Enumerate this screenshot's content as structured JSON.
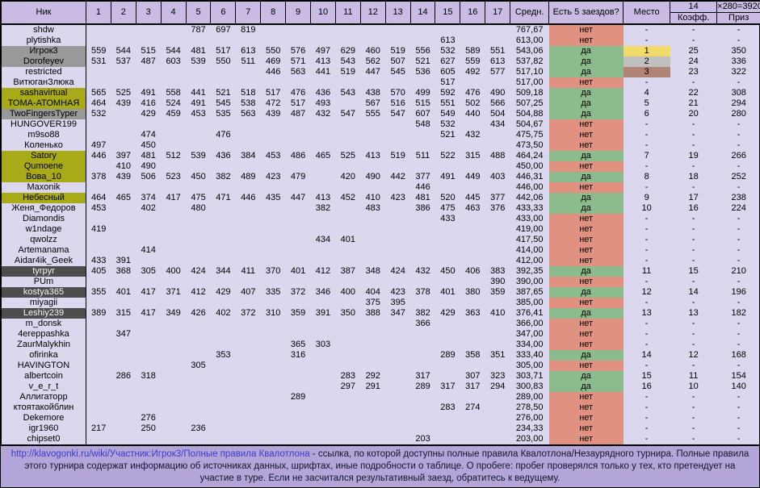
{
  "colors": {
    "header_bg": "#c9bbe3",
    "row_bg": "#dbd7ef",
    "nick_gray": "#999999",
    "nick_olive": "#a8aa18",
    "nick_dark": "#4d4d4d",
    "yes_green": "#8cbb8e",
    "no_salmon": "#e09180",
    "place_gold": "#f2db69",
    "place_silver": "#c0c0c0",
    "place_bronze": "#b08374",
    "footer_bg": "#b4a5d9",
    "link_blue": "#3a3ccd"
  },
  "header": {
    "nick": "Ник",
    "race_numbers": [
      "1",
      "2",
      "3",
      "4",
      "5",
      "6",
      "7",
      "8",
      "9",
      "10",
      "11",
      "12",
      "13",
      "14",
      "15",
      "16",
      "17"
    ],
    "avg": "Средн.",
    "five_races": "Есть 5 заездов?",
    "place": "Место",
    "coeff_group": "14",
    "prize_group": "×280=3920",
    "coeff": "Коэфф.",
    "prize": "Приз"
  },
  "rows": [
    {
      "nick": "shdw",
      "style": "plain",
      "scores": [
        "",
        "",
        "",
        "",
        "787",
        "697",
        "819",
        "",
        "",
        "",
        "",
        "",
        "",
        "",
        "",
        "",
        ""
      ],
      "avg": "767,67",
      "five": "нет",
      "place": "-",
      "coeff": "-",
      "prize": "-"
    },
    {
      "nick": "plytishka",
      "style": "plain",
      "scores": [
        "",
        "",
        "",
        "",
        "",
        "",
        "",
        "",
        "",
        "",
        "",
        "",
        "",
        "",
        "613",
        "",
        ""
      ],
      "avg": "613,00",
      "five": "нет",
      "place": "-",
      "coeff": "-",
      "prize": "-"
    },
    {
      "nick": "Игрок3",
      "style": "gray",
      "scores": [
        "559",
        "544",
        "515",
        "544",
        "481",
        "517",
        "613",
        "550",
        "576",
        "497",
        "629",
        "460",
        "519",
        "556",
        "532",
        "589",
        "551"
      ],
      "avg": "543,06",
      "five": "да",
      "place": "1",
      "medal": "gold",
      "coeff": "25",
      "prize": "350"
    },
    {
      "nick": "Dorofeyev",
      "style": "gray",
      "scores": [
        "531",
        "537",
        "487",
        "603",
        "539",
        "550",
        "511",
        "469",
        "571",
        "413",
        "543",
        "562",
        "507",
        "521",
        "627",
        "559",
        "613"
      ],
      "avg": "537,82",
      "five": "да",
      "place": "2",
      "medal": "silver",
      "coeff": "24",
      "prize": "336"
    },
    {
      "nick": "restricted",
      "style": "plain",
      "scores": [
        "",
        "",
        "",
        "",
        "",
        "",
        "",
        "446",
        "563",
        "441",
        "519",
        "447",
        "545",
        "536",
        "605",
        "492",
        "577"
      ],
      "avg": "517,10",
      "five": "да",
      "place": "3",
      "medal": "bronze",
      "coeff": "23",
      "prize": "322"
    },
    {
      "nick": "ВитюганЗлюка",
      "style": "plain",
      "scores": [
        "",
        "",
        "",
        "",
        "",
        "",
        "",
        "",
        "",
        "",
        "",
        "",
        "",
        "",
        "517",
        "",
        ""
      ],
      "avg": "517,00",
      "five": "нет",
      "place": "-",
      "coeff": "-",
      "prize": "-"
    },
    {
      "nick": "sashavirtual",
      "style": "olive",
      "scores": [
        "565",
        "525",
        "491",
        "558",
        "441",
        "521",
        "518",
        "517",
        "476",
        "436",
        "543",
        "438",
        "570",
        "499",
        "592",
        "476",
        "490"
      ],
      "avg": "509,18",
      "five": "да",
      "place": "4",
      "coeff": "22",
      "prize": "308"
    },
    {
      "nick": "ТОМА-АТОМНАЯ",
      "style": "olive",
      "scores": [
        "464",
        "439",
        "416",
        "524",
        "491",
        "545",
        "538",
        "472",
        "517",
        "493",
        "",
        "567",
        "516",
        "515",
        "551",
        "502",
        "566"
      ],
      "avg": "507,25",
      "five": "да",
      "place": "5",
      "coeff": "21",
      "prize": "294"
    },
    {
      "nick": "TwoFingersTyper",
      "style": "gray",
      "scores": [
        "532",
        "",
        "429",
        "459",
        "453",
        "535",
        "563",
        "439",
        "487",
        "432",
        "547",
        "555",
        "547",
        "607",
        "549",
        "440",
        "504"
      ],
      "avg": "504,88",
      "five": "да",
      "place": "6",
      "coeff": "20",
      "prize": "280"
    },
    {
      "nick": "HUNGOVER199",
      "style": "plain",
      "scores": [
        "",
        "",
        "",
        "",
        "",
        "",
        "",
        "",
        "",
        "",
        "",
        "",
        "",
        "548",
        "532",
        "",
        "434"
      ],
      "avg": "504,67",
      "five": "нет",
      "place": "-",
      "coeff": "-",
      "prize": "-"
    },
    {
      "nick": "m9so88",
      "style": "plain",
      "scores": [
        "",
        "",
        "474",
        "",
        "",
        "476",
        "",
        "",
        "",
        "",
        "",
        "",
        "",
        "",
        "521",
        "432",
        ""
      ],
      "avg": "475,75",
      "five": "нет",
      "place": "-",
      "coeff": "-",
      "prize": "-"
    },
    {
      "nick": "Коленько",
      "style": "plain",
      "scores": [
        "497",
        "",
        "450",
        "",
        "",
        "",
        "",
        "",
        "",
        "",
        "",
        "",
        "",
        "",
        "",
        "",
        ""
      ],
      "avg": "473,50",
      "five": "нет",
      "place": "-",
      "coeff": "-",
      "prize": "-"
    },
    {
      "nick": "Satory",
      "style": "olive",
      "scores": [
        "446",
        "397",
        "481",
        "512",
        "539",
        "436",
        "384",
        "453",
        "486",
        "465",
        "525",
        "413",
        "519",
        "511",
        "522",
        "315",
        "488"
      ],
      "avg": "464,24",
      "five": "да",
      "place": "7",
      "coeff": "19",
      "prize": "266"
    },
    {
      "nick": "Qumoene",
      "style": "olive",
      "scores": [
        "",
        "410",
        "490",
        "",
        "",
        "",
        "",
        "",
        "",
        "",
        "",
        "",
        "",
        "",
        "",
        "",
        ""
      ],
      "avg": "450,00",
      "five": "нет",
      "place": "-",
      "coeff": "-",
      "prize": "-"
    },
    {
      "nick": "Вова_10",
      "style": "olive",
      "scores": [
        "378",
        "439",
        "506",
        "523",
        "450",
        "382",
        "489",
        "423",
        "479",
        "",
        "420",
        "490",
        "442",
        "377",
        "491",
        "449",
        "403"
      ],
      "avg": "446,31",
      "five": "да",
      "place": "8",
      "coeff": "18",
      "prize": "252"
    },
    {
      "nick": "Maxonik",
      "style": "plain",
      "scores": [
        "",
        "",
        "",
        "",
        "",
        "",
        "",
        "",
        "",
        "",
        "",
        "",
        "",
        "446",
        "",
        "",
        ""
      ],
      "avg": "446,00",
      "five": "нет",
      "place": "-",
      "coeff": "-",
      "prize": "-"
    },
    {
      "nick": "Небесный",
      "style": "olive",
      "scores": [
        "464",
        "465",
        "374",
        "417",
        "475",
        "471",
        "446",
        "435",
        "447",
        "413",
        "452",
        "410",
        "423",
        "481",
        "520",
        "445",
        "377"
      ],
      "avg": "442,06",
      "five": "да",
      "place": "9",
      "coeff": "17",
      "prize": "238"
    },
    {
      "nick": "Женя_Федоров",
      "style": "plain",
      "scores": [
        "453",
        "",
        "402",
        "",
        "480",
        "",
        "",
        "",
        "",
        "382",
        "",
        "483",
        "",
        "386",
        "475",
        "463",
        "376"
      ],
      "avg": "433,33",
      "five": "да",
      "place": "10",
      "coeff": "16",
      "prize": "224"
    },
    {
      "nick": "Diamondis",
      "style": "plain",
      "scores": [
        "",
        "",
        "",
        "",
        "",
        "",
        "",
        "",
        "",
        "",
        "",
        "",
        "",
        "",
        "433",
        "",
        ""
      ],
      "avg": "433,00",
      "five": "нет",
      "place": "-",
      "coeff": "-",
      "prize": "-"
    },
    {
      "nick": "w1ndage",
      "style": "plain",
      "scores": [
        "419",
        "",
        "",
        "",
        "",
        "",
        "",
        "",
        "",
        "",
        "",
        "",
        "",
        "",
        "",
        "",
        ""
      ],
      "avg": "419,00",
      "five": "нет",
      "place": "-",
      "coeff": "-",
      "prize": "-"
    },
    {
      "nick": "qwolzz",
      "style": "plain",
      "scores": [
        "",
        "",
        "",
        "",
        "",
        "",
        "",
        "",
        "",
        "434",
        "401",
        "",
        "",
        "",
        "",
        "",
        ""
      ],
      "avg": "417,50",
      "five": "нет",
      "place": "-",
      "coeff": "-",
      "prize": "-"
    },
    {
      "nick": "Artemanama",
      "style": "plain",
      "scores": [
        "",
        "",
        "414",
        "",
        "",
        "",
        "",
        "",
        "",
        "",
        "",
        "",
        "",
        "",
        "",
        "",
        ""
      ],
      "avg": "414,00",
      "five": "нет",
      "place": "-",
      "coeff": "-",
      "prize": "-"
    },
    {
      "nick": "Aidar4ik_Geek",
      "style": "plain",
      "scores": [
        "433",
        "391",
        "",
        "",
        "",
        "",
        "",
        "",
        "",
        "",
        "",
        "",
        "",
        "",
        "",
        "",
        ""
      ],
      "avg": "412,00",
      "five": "нет",
      "place": "-",
      "coeff": "-",
      "prize": "-"
    },
    {
      "nick": "tyrpyr",
      "style": "dark",
      "scores": [
        "405",
        "368",
        "305",
        "400",
        "424",
        "344",
        "411",
        "370",
        "401",
        "412",
        "387",
        "348",
        "424",
        "432",
        "450",
        "406",
        "383"
      ],
      "avg": "392,35",
      "five": "да",
      "place": "11",
      "coeff": "15",
      "prize": "210"
    },
    {
      "nick": "PUm",
      "style": "plain",
      "scores": [
        "",
        "",
        "",
        "",
        "",
        "",
        "",
        "",
        "",
        "",
        "",
        "",
        "",
        "",
        "",
        "",
        "390"
      ],
      "avg": "390,00",
      "five": "нет",
      "place": "-",
      "coeff": "-",
      "prize": "-"
    },
    {
      "nick": "kostya365",
      "style": "dark",
      "scores": [
        "355",
        "401",
        "417",
        "371",
        "412",
        "429",
        "407",
        "335",
        "372",
        "346",
        "400",
        "404",
        "423",
        "378",
        "401",
        "380",
        "359"
      ],
      "avg": "387,65",
      "five": "да",
      "place": "12",
      "coeff": "14",
      "prize": "196"
    },
    {
      "nick": "miyagii",
      "style": "plain",
      "scores": [
        "",
        "",
        "",
        "",
        "",
        "",
        "",
        "",
        "",
        "",
        "",
        "375",
        "395",
        "",
        "",
        "",
        ""
      ],
      "avg": "385,00",
      "five": "нет",
      "place": "-",
      "coeff": "-",
      "prize": "-"
    },
    {
      "nick": "Leshiy239",
      "style": "dark",
      "scores": [
        "389",
        "315",
        "417",
        "349",
        "426",
        "402",
        "372",
        "310",
        "359",
        "391",
        "350",
        "388",
        "347",
        "382",
        "429",
        "363",
        "410"
      ],
      "avg": "376,41",
      "five": "да",
      "place": "13",
      "coeff": "13",
      "prize": "182"
    },
    {
      "nick": "m_donsk",
      "style": "plain",
      "scores": [
        "",
        "",
        "",
        "",
        "",
        "",
        "",
        "",
        "",
        "",
        "",
        "",
        "",
        "366",
        "",
        "",
        ""
      ],
      "avg": "366,00",
      "five": "нет",
      "place": "-",
      "coeff": "-",
      "prize": "-"
    },
    {
      "nick": "4ereppashka",
      "style": "plain",
      "scores": [
        "",
        "347",
        "",
        "",
        "",
        "",
        "",
        "",
        "",
        "",
        "",
        "",
        "",
        "",
        "",
        "",
        ""
      ],
      "avg": "347,00",
      "five": "нет",
      "place": "-",
      "coeff": "-",
      "prize": "-"
    },
    {
      "nick": "ZaurMalykhin",
      "style": "plain",
      "scores": [
        "",
        "",
        "",
        "",
        "",
        "",
        "",
        "",
        "365",
        "303",
        "",
        "",
        "",
        "",
        "",
        "",
        ""
      ],
      "avg": "334,00",
      "five": "нет",
      "place": "-",
      "coeff": "-",
      "prize": "-"
    },
    {
      "nick": "ofirinka",
      "style": "plain",
      "scores": [
        "",
        "",
        "",
        "",
        "",
        "353",
        "",
        "",
        "316",
        "",
        "",
        "",
        "",
        "",
        "289",
        "358",
        "351"
      ],
      "avg": "333,40",
      "five": "да",
      "place": "14",
      "coeff": "12",
      "prize": "168"
    },
    {
      "nick": "HAVINGTON",
      "style": "plain",
      "scores": [
        "",
        "",
        "",
        "",
        "305",
        "",
        "",
        "",
        "",
        "",
        "",
        "",
        "",
        "",
        "",
        "",
        ""
      ],
      "avg": "305,00",
      "five": "нет",
      "place": "-",
      "coeff": "-",
      "prize": "-"
    },
    {
      "nick": "albertcoin",
      "style": "plain",
      "scores": [
        "",
        "286",
        "318",
        "",
        "",
        "",
        "",
        "",
        "",
        "",
        "283",
        "292",
        "",
        "317",
        "",
        "307",
        "323"
      ],
      "avg": "303,71",
      "five": "да",
      "place": "15",
      "coeff": "11",
      "prize": "154"
    },
    {
      "nick": "v_e_r_t",
      "style": "plain",
      "scores": [
        "",
        "",
        "",
        "",
        "",
        "",
        "",
        "",
        "",
        "",
        "297",
        "291",
        "",
        "289",
        "317",
        "317",
        "294"
      ],
      "avg": "300,83",
      "five": "да",
      "place": "16",
      "coeff": "10",
      "prize": "140"
    },
    {
      "nick": "Аллигаторр",
      "style": "plain",
      "scores": [
        "",
        "",
        "",
        "",
        "",
        "",
        "",
        "",
        "289",
        "",
        "",
        "",
        "",
        "",
        "",
        "",
        ""
      ],
      "avg": "289,00",
      "five": "нет",
      "place": "-",
      "coeff": "-",
      "prize": "-"
    },
    {
      "nick": "ктоятакойблин",
      "style": "plain",
      "scores": [
        "",
        "",
        "",
        "",
        "",
        "",
        "",
        "",
        "",
        "",
        "",
        "",
        "",
        "",
        "283",
        "274",
        ""
      ],
      "avg": "278,50",
      "five": "нет",
      "place": "-",
      "coeff": "-",
      "prize": "-"
    },
    {
      "nick": "Dekemore",
      "style": "plain",
      "scores": [
        "",
        "",
        "276",
        "",
        "",
        "",
        "",
        "",
        "",
        "",
        "",
        "",
        "",
        "",
        "",
        "",
        ""
      ],
      "avg": "276,00",
      "five": "нет",
      "place": "-",
      "coeff": "-",
      "prize": "-"
    },
    {
      "nick": "igr1960",
      "style": "plain",
      "scores": [
        "217",
        "",
        "250",
        "",
        "236",
        "",
        "",
        "",
        "",
        "",
        "",
        "",
        "",
        "",
        "",
        "",
        ""
      ],
      "avg": "234,33",
      "five": "нет",
      "place": "-",
      "coeff": "-",
      "prize": "-"
    },
    {
      "nick": "chipset0",
      "style": "plain",
      "scores": [
        "",
        "",
        "",
        "",
        "",
        "",
        "",
        "",
        "",
        "",
        "",
        "",
        "",
        "203",
        "",
        "",
        ""
      ],
      "avg": "203,00",
      "five": "нет",
      "place": "-",
      "coeff": "-",
      "prize": "-"
    }
  ],
  "footer": {
    "link_text": "http://klavogonki.ru/wiki/Участник:Игрок3/Полные правила Квалотлона",
    "rest": " - ссылка, по которой доступны полные правила Квалотлона/Незаурядного турнира. Полные правила этого турнира содержат информацию об источниках данных, шрифтах, иные подробности о таблице. О пробеге: пробег проверялся только у тех, кто претендует на участие в туре. Если не засчитался результативный заезд, обратитесь к ведущему."
  }
}
